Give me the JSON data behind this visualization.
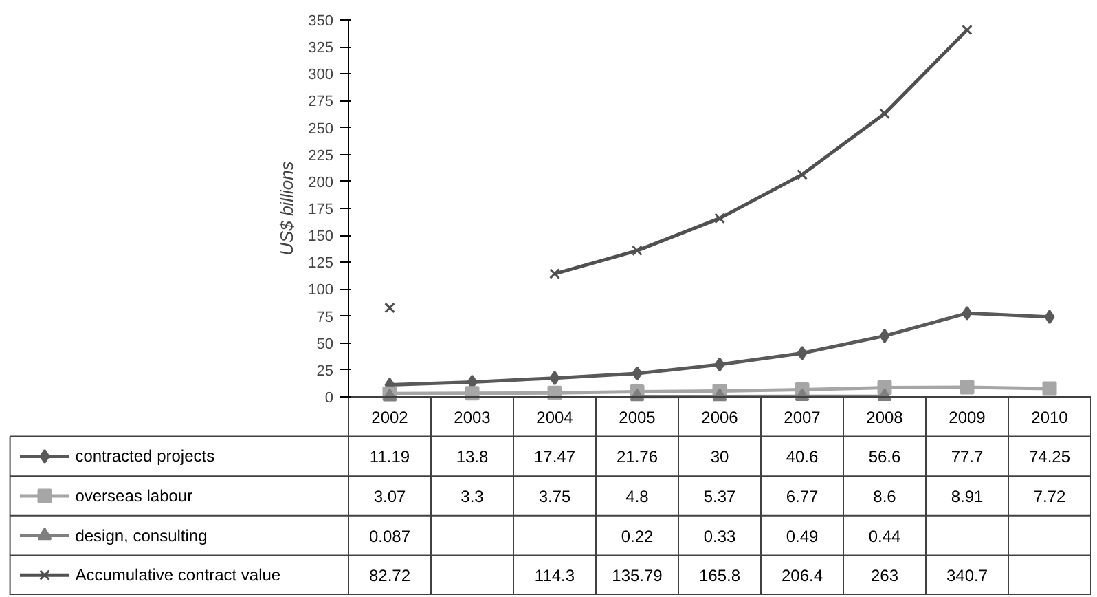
{
  "chart_data": {
    "type": "line",
    "ylabel": "US$ billions",
    "categories": [
      "2002",
      "2003",
      "2004",
      "2005",
      "2006",
      "2007",
      "2008",
      "2009",
      "2010"
    ],
    "ylim": [
      0,
      350
    ],
    "yticks": [
      0,
      25,
      50,
      75,
      100,
      125,
      150,
      175,
      200,
      225,
      250,
      275,
      300,
      325,
      350
    ],
    "legend": "bottom",
    "data_labels": true,
    "line_style": "solid",
    "series": [
      {
        "name": "contracted projects",
        "color": "#595959",
        "marker": "diamond",
        "values": [
          11.19,
          13.8,
          17.47,
          21.76,
          30,
          40.6,
          56.6,
          77.7,
          74.25
        ]
      },
      {
        "name": "overseas labour",
        "color": "#a6a6a6",
        "marker": "square",
        "values": [
          3.07,
          3.3,
          3.75,
          4.8,
          5.37,
          6.77,
          8.6,
          8.91,
          7.72
        ]
      },
      {
        "name": "design, consulting",
        "color": "#7f7f7f",
        "marker": "triangle",
        "values": [
          0.087,
          null,
          null,
          0.22,
          0.33,
          0.49,
          0.44,
          null,
          null
        ]
      },
      {
        "name": "Accumulative contract value",
        "color": "#505050",
        "marker": "cross",
        "values": [
          82.72,
          null,
          114.3,
          135.79,
          165.8,
          206.4,
          263,
          340.7,
          null
        ]
      }
    ]
  }
}
